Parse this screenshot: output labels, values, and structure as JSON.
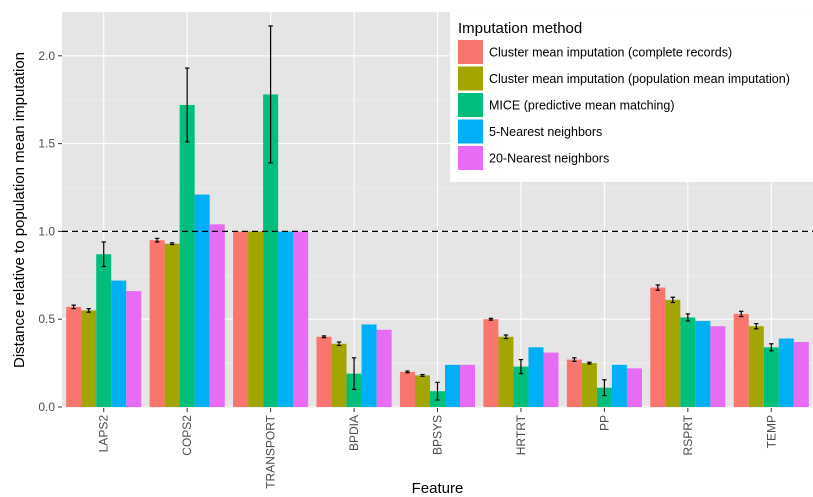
{
  "chart_data": {
    "type": "bar",
    "xlabel": "Feature",
    "ylabel": "Distance relative to population mean imputation",
    "ylim": [
      0,
      2.25
    ],
    "yticks": [
      0.0,
      0.5,
      1.0,
      1.5,
      2.0
    ],
    "ytick_labels": [
      "0.0",
      "0.5",
      "1.0",
      "1.5",
      "2.0"
    ],
    "reference_line": 1.0,
    "grid": true,
    "legend_title": "Imputation method",
    "legend_position": "top-right",
    "categories": [
      "LAPS2",
      "COPS2",
      "TRANSPORT",
      "BPDIA",
      "BPSYS",
      "HRTRT",
      "PP",
      "RSPRT",
      "TEMP"
    ],
    "series": [
      {
        "name": "Cluster mean imputation (complete records)",
        "color": "#F8766D",
        "values": [
          0.57,
          0.95,
          1.0,
          0.4,
          0.2,
          0.5,
          0.27,
          0.68,
          0.53
        ],
        "errors": [
          0.01,
          0.01,
          0.0,
          0.005,
          0.005,
          0.005,
          0.01,
          0.015,
          0.015
        ]
      },
      {
        "name": "Cluster mean imputation (population mean imputation)",
        "color": "#A3A500",
        "values": [
          0.55,
          0.93,
          1.0,
          0.36,
          0.18,
          0.4,
          0.25,
          0.61,
          0.46
        ],
        "errors": [
          0.01,
          0.005,
          0.0,
          0.01,
          0.005,
          0.01,
          0.005,
          0.015,
          0.015
        ]
      },
      {
        "name": "MICE (predictive mean matching)",
        "color": "#00BF7D",
        "values": [
          0.87,
          1.72,
          1.78,
          0.19,
          0.09,
          0.23,
          0.11,
          0.51,
          0.34
        ],
        "errors": [
          0.07,
          0.21,
          0.39,
          0.09,
          0.05,
          0.04,
          0.045,
          0.02,
          0.02
        ]
      },
      {
        "name": "5-Nearest neighbors",
        "color": "#00B0F6",
        "values": [
          0.72,
          1.21,
          1.0,
          0.47,
          0.24,
          0.34,
          0.24,
          0.49,
          0.39
        ],
        "errors": [
          0,
          0,
          0,
          0,
          0,
          0,
          0,
          0,
          0
        ]
      },
      {
        "name": "20-Nearest neighbors",
        "color": "#E76BF3",
        "values": [
          0.66,
          1.04,
          1.0,
          0.44,
          0.24,
          0.31,
          0.22,
          0.46,
          0.37
        ],
        "errors": [
          0,
          0,
          0,
          0,
          0,
          0,
          0,
          0,
          0
        ]
      }
    ]
  }
}
